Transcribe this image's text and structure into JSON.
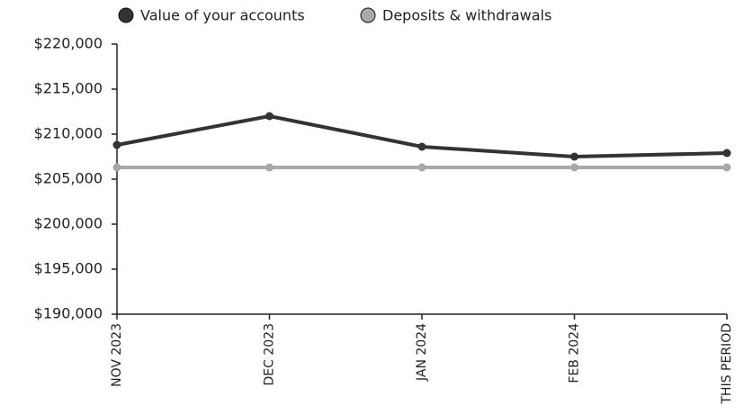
{
  "chart_data": {
    "type": "line",
    "categories": [
      "NOV 2023",
      "DEC 2023",
      "JAN 2024",
      "FEB 2024",
      "THIS PERIOD"
    ],
    "series": [
      {
        "name": "Value of your accounts",
        "color": "#333333",
        "values": [
          208800,
          212000,
          208600,
          207500,
          207900
        ]
      },
      {
        "name": "Deposits & withdrawals",
        "color": "#a8a8a8",
        "values": [
          206300,
          206300,
          206300,
          206300,
          206300
        ]
      }
    ],
    "ylim": [
      190000,
      220000
    ],
    "yticks": [
      {
        "value": 190000,
        "label": "$190,000"
      },
      {
        "value": 195000,
        "label": "$195,000"
      },
      {
        "value": 200000,
        "label": "$200,000"
      },
      {
        "value": 205000,
        "label": "$205,000"
      },
      {
        "value": 210000,
        "label": "$210,000"
      },
      {
        "value": 215000,
        "label": "$215,000"
      },
      {
        "value": 220000,
        "label": "$220,000"
      }
    ]
  }
}
